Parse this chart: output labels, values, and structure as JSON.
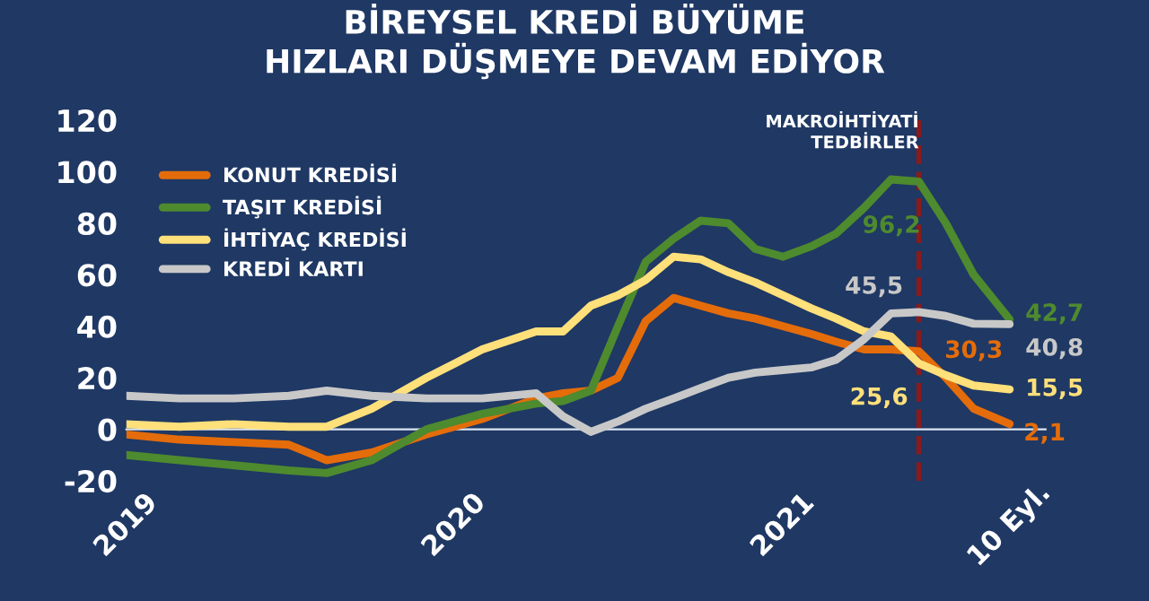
{
  "chart_data": {
    "type": "line",
    "title": "BİREYSEL KREDİ BÜYÜME\nHIZLARI DÜŞMEYE DEVAM EDİYOR",
    "x": [
      "2019-01-01",
      "2019-03-01",
      "2019-05-01",
      "2019-07-01",
      "2019-08-12",
      "2019-10-01",
      "2019-12-01",
      "2020-02-01",
      "2020-04-01",
      "2020-05-01",
      "2020-06-01",
      "2020-07-01",
      "2020-08-01",
      "2020-09-01",
      "2020-10-01",
      "2020-11-01",
      "2020-12-01",
      "2021-01-01",
      "2021-02-01",
      "2021-03-01",
      "2021-04-01",
      "2021-05-01",
      "2021-06-01",
      "2021-07-01",
      "2021-08-01",
      "2021-09-10"
    ],
    "series": [
      {
        "name": "KONUT KREDİSİ",
        "color": "#e46c0a",
        "values": [
          -2,
          -4,
          -5,
          -6,
          -12,
          -9,
          -2,
          4,
          12,
          14,
          15,
          20,
          42,
          51,
          48,
          45,
          43,
          40,
          37,
          34,
          31,
          31,
          30.3,
          20,
          8,
          2.1
        ]
      },
      {
        "name": "TAŞIT KREDİSİ",
        "color": "#4e8a2e",
        "values": [
          -10,
          -12,
          -14,
          -16,
          -17,
          -12,
          0,
          6,
          10,
          11,
          15,
          40,
          65,
          74,
          81,
          80,
          70,
          67,
          71,
          76,
          86,
          97,
          96.2,
          80,
          60,
          42.7
        ]
      },
      {
        "name": "İHTİYAÇ KREDİSİ",
        "color": "#ffe07a",
        "values": [
          2,
          1,
          2,
          1,
          1,
          8,
          20,
          31,
          38,
          38,
          48,
          52,
          58,
          67,
          66,
          61,
          57,
          52,
          47,
          43,
          38,
          36,
          25.6,
          21,
          17,
          15.5
        ]
      },
      {
        "name": "KREDİ KARTI",
        "color": "#c8c8c8",
        "values": [
          13,
          12,
          12,
          13,
          15,
          13,
          12,
          12,
          14,
          5,
          -1,
          3,
          8,
          12,
          16,
          20,
          22,
          23,
          24,
          27,
          35,
          45,
          45.5,
          44,
          41,
          40.8
        ]
      }
    ],
    "xlim": [
      "2019-01-01",
      "2021-10-20"
    ],
    "xticks": [
      {
        "value": "2019-01-01",
        "label": "2019"
      },
      {
        "value": "2020-01-01",
        "label": "2020"
      },
      {
        "value": "2021-01-01",
        "label": "2021"
      },
      {
        "value": "2021-09-10",
        "label": "10 Eyl."
      }
    ],
    "ylim": [
      -20,
      120
    ],
    "yticks": [
      -20,
      0,
      20,
      40,
      60,
      80,
      100,
      120
    ],
    "ref_lines": [
      {
        "axis": "x",
        "value": "2021-06-01",
        "label": "MAKROİHTİYATİ\nTEDBİRLER",
        "color": "#8b1a1a",
        "line_style": "dashed"
      }
    ],
    "annotations": [
      {
        "text": "96,2",
        "x": "2021-06-01",
        "y": 96.2
      },
      {
        "text": "45,5",
        "x": "2021-06-01",
        "y": 45.5
      },
      {
        "text": "30,3",
        "x": "2021-06-01",
        "y": 30.3
      },
      {
        "text": "25,6",
        "x": "2021-06-01",
        "y": 25.6
      },
      {
        "text": "42,7",
        "x": "2021-09-10",
        "y": 42.7
      },
      {
        "text": "40,8",
        "x": "2021-09-10",
        "y": 40.8
      },
      {
        "text": "15,5",
        "x": "2021-09-10",
        "y": 15.5
      },
      {
        "text": "2,1",
        "x": "2021-09-10",
        "y": 2.1
      }
    ],
    "grid": false,
    "legend": "top left",
    "marker": "none",
    "line_style": "solid"
  }
}
